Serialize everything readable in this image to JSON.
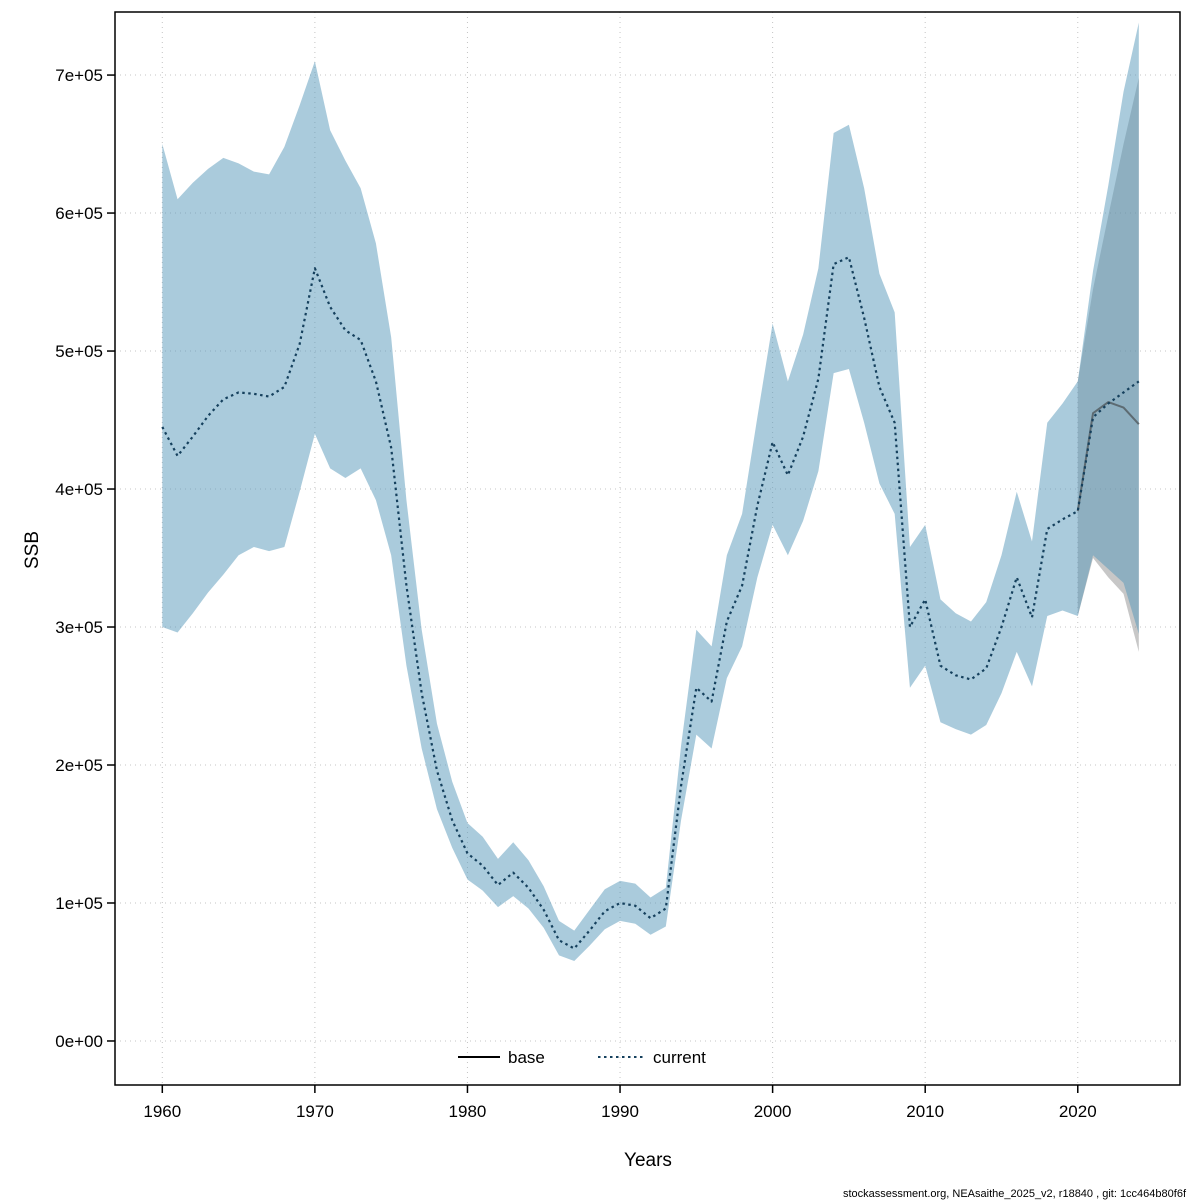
{
  "footer": "stockassessment.org, NEAsaithe_2025_v2, r18840 , git: 1cc464b80f6f",
  "axes": {
    "x_label": "Years",
    "y_label": "SSB",
    "x_ticks": [
      1960,
      1970,
      1980,
      1990,
      2000,
      2010,
      2020
    ],
    "y_ticks": [
      "0e+00",
      "1e+05",
      "2e+05",
      "3e+05",
      "4e+05",
      "5e+05",
      "6e+05",
      "7e+05"
    ],
    "y_tick_values": [
      0,
      100000,
      200000,
      300000,
      400000,
      500000,
      600000,
      700000
    ]
  },
  "legend": [
    {
      "label": "base",
      "color": "#000000",
      "style": "solid"
    },
    {
      "label": "current",
      "color": "#15405d",
      "style": "dotted"
    }
  ],
  "colors": {
    "band_current": "rgba(85,151,185,0.5)",
    "band_base": "rgba(130,130,130,0.45)",
    "grid": "#c4c4c4",
    "frame": "#000000"
  },
  "chart_data": {
    "type": "line",
    "title": "",
    "xlabel": "Years",
    "ylabel": "SSB",
    "xlim": [
      1956.9,
      2026.7
    ],
    "ylim": [
      -31900,
      745700
    ],
    "series": [
      {
        "name": "base",
        "color": "#5d6b72",
        "style": "solid",
        "width": 2,
        "x": [
          2020,
          2021,
          2022,
          2023,
          2024
        ],
        "values": [
          384000,
          455000,
          463000,
          459000,
          447000
        ]
      },
      {
        "name": "current",
        "color": "#15405d",
        "style": "dotted",
        "width": 2.2,
        "x": [
          1960,
          1961,
          1962,
          1963,
          1964,
          1965,
          1966,
          1967,
          1968,
          1969,
          1970,
          1971,
          1972,
          1973,
          1974,
          1975,
          1976,
          1977,
          1978,
          1979,
          1980,
          1981,
          1982,
          1983,
          1984,
          1985,
          1986,
          1987,
          1988,
          1989,
          1990,
          1991,
          1992,
          1993,
          1994,
          1995,
          1996,
          1997,
          1998,
          1999,
          2000,
          2001,
          2002,
          2003,
          2004,
          2005,
          2006,
          2007,
          2008,
          2009,
          2010,
          2011,
          2012,
          2013,
          2014,
          2015,
          2016,
          2017,
          2018,
          2019,
          2020,
          2021,
          2022,
          2023,
          2024
        ],
        "values": [
          445000,
          424000,
          438000,
          453000,
          465000,
          470000,
          469000,
          467000,
          474000,
          505000,
          560000,
          532000,
          515000,
          508000,
          478000,
          430000,
          330000,
          252000,
          196000,
          160000,
          136000,
          127000,
          113000,
          122000,
          111000,
          95000,
          73000,
          67000,
          80000,
          94000,
          100000,
          98000,
          89000,
          96000,
          185000,
          256000,
          246000,
          304000,
          330000,
          388000,
          434000,
          410000,
          438000,
          480000,
          563000,
          568000,
          524000,
          474000,
          448000,
          300000,
          320000,
          272000,
          265000,
          262000,
          270000,
          300000,
          336000,
          307000,
          371000,
          378000,
          384000,
          452000,
          462000,
          470000,
          478000
        ]
      }
    ],
    "bands": [
      {
        "name": "base_ci",
        "color_key": "band_base",
        "x": [
          2020,
          2021,
          2022,
          2023,
          2024
        ],
        "lower": [
          308000,
          350000,
          336000,
          324000,
          282000
        ],
        "upper": [
          478000,
          545000,
          598000,
          650000,
          698000
        ]
      },
      {
        "name": "current_ci",
        "color_key": "band_current",
        "x": [
          1960,
          1961,
          1962,
          1963,
          1964,
          1965,
          1966,
          1967,
          1968,
          1969,
          1970,
          1971,
          1972,
          1973,
          1974,
          1975,
          1976,
          1977,
          1978,
          1979,
          1980,
          1981,
          1982,
          1983,
          1984,
          1985,
          1986,
          1987,
          1988,
          1989,
          1990,
          1991,
          1992,
          1993,
          1994,
          1995,
          1996,
          1997,
          1998,
          1999,
          2000,
          2001,
          2002,
          2003,
          2004,
          2005,
          2006,
          2007,
          2008,
          2009,
          2010,
          2011,
          2012,
          2013,
          2014,
          2015,
          2016,
          2017,
          2018,
          2019,
          2020,
          2021,
          2022,
          2023,
          2024
        ],
        "lower": [
          300000,
          296000,
          310000,
          325000,
          338000,
          352000,
          358000,
          355000,
          358000,
          398000,
          440000,
          415000,
          408000,
          415000,
          392000,
          352000,
          272000,
          212000,
          168000,
          140000,
          117000,
          109000,
          97000,
          105000,
          96000,
          82000,
          62000,
          58000,
          69000,
          81000,
          87000,
          85000,
          77000,
          83000,
          160000,
          222000,
          212000,
          263000,
          286000,
          336000,
          374000,
          352000,
          377000,
          413000,
          484000,
          487000,
          448000,
          404000,
          382000,
          256000,
          272000,
          231000,
          226000,
          222000,
          229000,
          252000,
          282000,
          257000,
          308000,
          312000,
          308000,
          352000,
          342000,
          332000,
          295000
        ],
        "upper": [
          650000,
          610000,
          622000,
          632000,
          640000,
          636000,
          630000,
          628000,
          648000,
          678000,
          710000,
          660000,
          638000,
          618000,
          578000,
          510000,
          392000,
          298000,
          230000,
          188000,
          158000,
          148000,
          132000,
          144000,
          131000,
          112000,
          87000,
          80000,
          95000,
          110000,
          116000,
          114000,
          104000,
          111000,
          214000,
          298000,
          286000,
          352000,
          382000,
          452000,
          520000,
          478000,
          512000,
          560000,
          658000,
          664000,
          618000,
          556000,
          528000,
          358000,
          374000,
          320000,
          310000,
          304000,
          318000,
          352000,
          398000,
          362000,
          448000,
          462000,
          478000,
          558000,
          620000,
          688000,
          738000
        ]
      }
    ]
  }
}
